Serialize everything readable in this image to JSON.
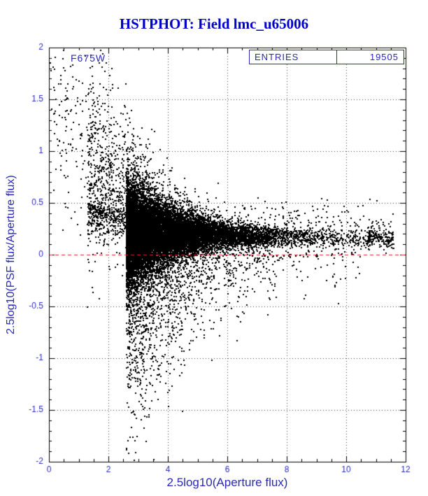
{
  "header": {
    "title": "HSTPHOT: Field lmc_u65006"
  },
  "plot": {
    "filter_label": "F675W",
    "stats": {
      "entries_label": "ENTRIES",
      "entries_value": "19505"
    }
  },
  "chart_data": {
    "type": "scatter",
    "title": "HSTPHOT: Field lmc_u65006",
    "xlabel": "2.5log10(Aperture flux)",
    "ylabel": "2.5log10(PSF flux/Aperture flux)",
    "xlim": [
      0,
      12
    ],
    "ylim": [
      -2,
      2
    ],
    "x_major_ticks": [
      0,
      2,
      4,
      6,
      8,
      10,
      12
    ],
    "x_tick_labels": [
      "0",
      "2",
      "4",
      "6",
      "8",
      "10",
      "12"
    ],
    "y_major_ticks": [
      -2,
      -1.5,
      -1,
      -0.5,
      0,
      0.5,
      1,
      1.5,
      2
    ],
    "y_tick_labels": [
      "-2",
      "-1.5",
      "-1",
      "-0.5",
      "0",
      "0.5",
      "1",
      "1.5",
      "2"
    ],
    "x_minor_step": 0.5,
    "y_minor_step": 0.1,
    "grid": true,
    "entries": 19505,
    "filter": "F675W",
    "point_size": 2,
    "reference_line": {
      "y": 0,
      "style": "dashed"
    },
    "colors": {
      "title": "#0000cc",
      "axis_text": "#2a2ab8",
      "frame": "#000000",
      "grid": "#444444",
      "points": "#000000",
      "ref_line": "#dd2222",
      "background": "#ffffff"
    },
    "generator": {
      "seed": 1337,
      "clusters": [
        {
          "name": "core-band",
          "n": 13980,
          "xmin": 2.6,
          "xmax": 11.6,
          "xdecay": 1.6,
          "yc0": 0.22,
          "yc1": 0.13,
          "ys0": 0.28,
          "ys1": 0.035,
          "ydecay": 1.8,
          "skewNeg": 1,
          "skewPos": 1
        },
        {
          "name": "lower-plume",
          "n": 3300,
          "xmin": 2.6,
          "xmax": 7.5,
          "xdecay": 1.5,
          "yc0": 0.1,
          "yc1": 0.1,
          "ys0": 0.9,
          "ys1": 0.15,
          "ydecay": 2.4,
          "skewNeg": 1,
          "skewPos": 0.25
        },
        {
          "name": "upper-halo",
          "n": 1400,
          "xmin": 1.3,
          "xmax": 6.5,
          "xdecay": 1.8,
          "yc0": 0.5,
          "yc1": 0.2,
          "ys0": 0.7,
          "ys1": 0.1,
          "ydecay": 2.2,
          "skewNeg": 0.3,
          "skewPos": 1
        },
        {
          "name": "left-sparse",
          "n": 260,
          "xmin": 0.05,
          "xmax": 2.6,
          "xdecay": 0,
          "yc0": 1.3,
          "yc1": 0.6,
          "ys0": 0.5,
          "ys1": 0.5,
          "ydecay": 3,
          "skewNeg": 1,
          "skewPos": 1
        },
        {
          "name": "right-upper-outliers",
          "n": 300,
          "xmin": 6.5,
          "xmax": 11.6,
          "xdecay": 0,
          "yc0": 0.28,
          "yc1": 0.22,
          "ys0": 0.14,
          "ys1": 0.12,
          "ydecay": 3,
          "skewNeg": 0.5,
          "skewPos": 1
        },
        {
          "name": "right-lower-outliers",
          "n": 145,
          "xmin": 6.0,
          "xmax": 10.5,
          "xdecay": 0,
          "yc0": -0.05,
          "yc1": 0.0,
          "ys0": 0.25,
          "ys1": 0.15,
          "ydecay": 3,
          "skewNeg": 1,
          "skewPos": 0.3
        },
        {
          "name": "saturated-clump",
          "n": 120,
          "xmin": 10.7,
          "xmax": 11.6,
          "xdecay": 0,
          "yc0": 0.16,
          "yc1": 0.15,
          "ys0": 0.05,
          "ys1": 0.04,
          "ydecay": 3,
          "skewNeg": 1,
          "skewPos": 1
        }
      ]
    }
  }
}
